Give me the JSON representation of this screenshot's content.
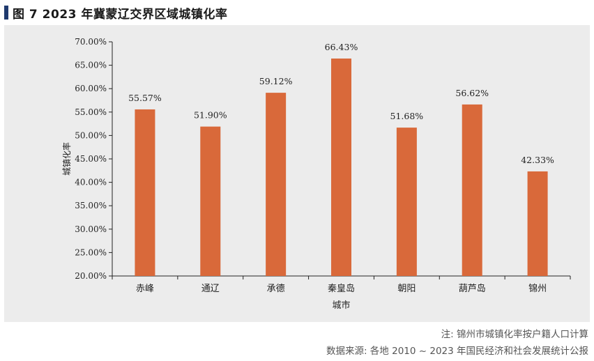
{
  "figure": {
    "title": "图 7   2023 年冀蒙辽交界区域城镇化率"
  },
  "footnotes": {
    "note": "注: 锦州市城镇化率按户籍人口计算",
    "source": "数据来源: 各地 2010 ~ 2023 年国民经济和社会发展统计公报"
  },
  "colors": {
    "bar": "#d9693a",
    "axis": "#222222",
    "panel": "#ececec",
    "title_marker": "#1f3a6e"
  },
  "chart_data": {
    "type": "bar",
    "categories": [
      "赤峰",
      "通辽",
      "承德",
      "秦皇岛",
      "朝阳",
      "葫芦岛",
      "锦州"
    ],
    "values": [
      55.57,
      51.9,
      59.12,
      66.43,
      51.68,
      56.62,
      42.33
    ],
    "data_labels": [
      "55.57%",
      "51.90%",
      "59.12%",
      "66.43%",
      "51.68%",
      "56.62%",
      "42.33%"
    ],
    "title": "",
    "xlabel": "城市",
    "ylabel": "城镇化率",
    "ylim": [
      20,
      70
    ],
    "yticks": [
      20,
      25,
      30,
      35,
      40,
      45,
      50,
      55,
      60,
      65,
      70
    ],
    "ytick_labels": [
      "20.00%",
      "25.00%",
      "30.00%",
      "35.00%",
      "40.00%",
      "45.00%",
      "50.00%",
      "55.00%",
      "60.00%",
      "65.00%",
      "70.00%"
    ],
    "grid": false,
    "legend": "none"
  }
}
